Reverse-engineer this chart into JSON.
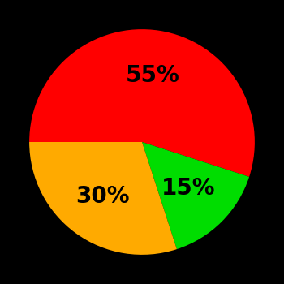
{
  "slices": [
    55,
    15,
    30
  ],
  "colors": [
    "#ff0000",
    "#00dd00",
    "#ffaa00"
  ],
  "labels": [
    "55%",
    "15%",
    "30%"
  ],
  "label_radii": [
    0.6,
    0.58,
    0.6
  ],
  "startangle": 180,
  "background_color": "#000000",
  "label_fontsize": 20,
  "label_fontweight": "bold"
}
